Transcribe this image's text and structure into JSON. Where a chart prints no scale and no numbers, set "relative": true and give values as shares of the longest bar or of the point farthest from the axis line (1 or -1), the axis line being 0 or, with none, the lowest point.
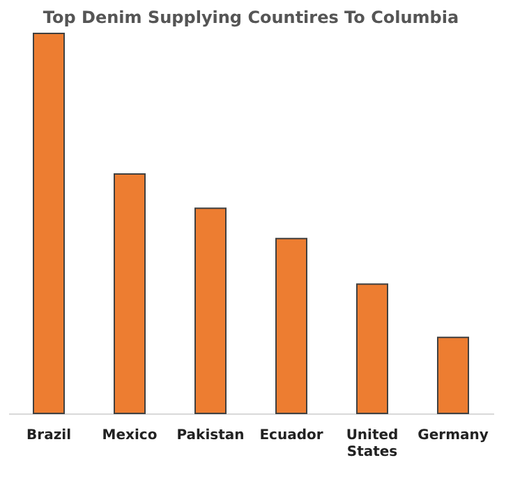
{
  "chart_data": {
    "type": "bar",
    "title": "Top Denim Supplying Countires To Columbia",
    "categories": [
      "Brazil",
      "Mexico",
      "Pakistan",
      "Ecuador",
      "United States",
      "Germany"
    ],
    "values": [
      1,
      0.63,
      0.54,
      0.46,
      0.34,
      0.2
    ],
    "color": "#ed7d31",
    "relative": true,
    "grid": false
  }
}
